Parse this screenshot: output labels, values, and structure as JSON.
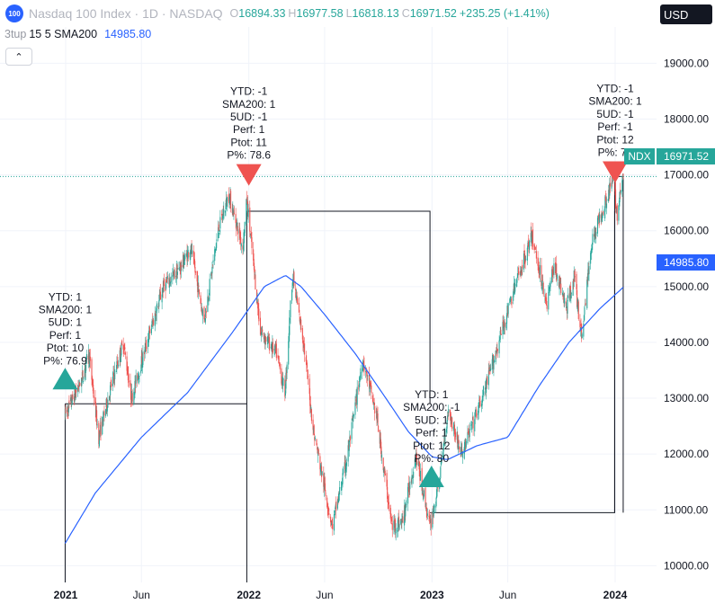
{
  "header": {
    "logo_text": "100",
    "symbol": "Nasdaq 100 Index · 1D · NASDAQ",
    "open_label": "O",
    "open": "16894.33",
    "high_label": "H",
    "high": "16977.58",
    "low_label": "L",
    "low": "16818.13",
    "close_label": "C",
    "close": "16971.52",
    "change": "+235.25 (+1.41%)"
  },
  "indicator": {
    "name": "3tup",
    "params": "15 5 SMA200",
    "value": "14985.80"
  },
  "currency": "USD",
  "price_tags": {
    "ticker": "NDX",
    "last": "16971.52",
    "sma": "14985.80"
  },
  "colors": {
    "up": "#26a69a",
    "down": "#ef5350",
    "sma": "#2962ff",
    "buy_marker": "#26a69a",
    "sell_marker": "#ef5350",
    "box": "#131722"
  },
  "chart_data": {
    "type": "candlestick",
    "ylim": [
      9700,
      19650
    ],
    "y_ticks": [
      10000,
      11000,
      12000,
      13000,
      14000,
      15000,
      16000,
      17000,
      18000,
      19000
    ],
    "y_tick_labels": [
      "10000.00",
      "11000.00",
      "12000.00",
      "13000.00",
      "14000.00",
      "15000.00",
      "16000.00",
      "17000.00",
      "18000.00",
      "19000.00"
    ],
    "x_tick_labels": [
      {
        "date": "2021-01",
        "label": "2021"
      },
      {
        "date": "2021-06",
        "label": "Jun"
      },
      {
        "date": "2022-01",
        "label": "2022"
      },
      {
        "date": "2022-06",
        "label": "Jun"
      },
      {
        "date": "2023-01",
        "label": "2023"
      },
      {
        "date": "2023-06",
        "label": "Jun"
      },
      {
        "date": "2024-01",
        "label": "2024"
      }
    ],
    "price_path": [
      [
        "2020-12-31",
        12700
      ],
      [
        "2021-02-01",
        13300
      ],
      [
        "2021-02-16",
        13800
      ],
      [
        "2021-03-08",
        12300
      ],
      [
        "2021-04-01",
        13200
      ],
      [
        "2021-04-26",
        14000
      ],
      [
        "2021-05-12",
        13000
      ],
      [
        "2021-06-15",
        14100
      ],
      [
        "2021-07-15",
        15000
      ],
      [
        "2021-08-15",
        15300
      ],
      [
        "2021-09-07",
        15700
      ],
      [
        "2021-10-04",
        14400
      ],
      [
        "2021-11-01",
        16000
      ],
      [
        "2021-11-22",
        16650
      ],
      [
        "2021-12-20",
        15700
      ],
      [
        "2021-12-28",
        16550
      ],
      [
        "2022-01-24",
        14200
      ],
      [
        "2022-02-25",
        13800
      ],
      [
        "2022-03-14",
        13100
      ],
      [
        "2022-03-29",
        15200
      ],
      [
        "2022-04-20",
        14000
      ],
      [
        "2022-05-10",
        12400
      ],
      [
        "2022-06-16",
        10700
      ],
      [
        "2022-07-15",
        11900
      ],
      [
        "2022-08-16",
        13700
      ],
      [
        "2022-09-12",
        12700
      ],
      [
        "2022-10-13",
        10700
      ],
      [
        "2022-11-03",
        10800
      ],
      [
        "2022-11-30",
        12000
      ],
      [
        "2022-12-28",
        10700
      ],
      [
        "2023-01-15",
        11500
      ],
      [
        "2023-02-02",
        12800
      ],
      [
        "2023-03-01",
        12000
      ],
      [
        "2023-04-15",
        13100
      ],
      [
        "2023-06-15",
        15000
      ],
      [
        "2023-07-19",
        15900
      ],
      [
        "2023-08-18",
        14700
      ],
      [
        "2023-09-01",
        15400
      ],
      [
        "2023-09-26",
        14600
      ],
      [
        "2023-10-11",
        15200
      ],
      [
        "2023-10-26",
        14100
      ],
      [
        "2023-11-15",
        15800
      ],
      [
        "2023-12-15",
        16600
      ],
      [
        "2023-12-28",
        16900
      ],
      [
        "2024-01-05",
        16300
      ],
      [
        "2024-01-17",
        16971
      ]
    ],
    "sma200_path": [
      [
        "2020-12-31",
        10400
      ],
      [
        "2021-03-01",
        11300
      ],
      [
        "2021-06-01",
        12300
      ],
      [
        "2021-09-01",
        13100
      ],
      [
        "2021-12-01",
        14200
      ],
      [
        "2022-02-01",
        15000
      ],
      [
        "2022-03-15",
        15200
      ],
      [
        "2022-04-15",
        15000
      ],
      [
        "2022-06-01",
        14500
      ],
      [
        "2022-08-01",
        13800
      ],
      [
        "2022-10-01",
        13000
      ],
      [
        "2022-11-15",
        12400
      ],
      [
        "2023-01-01",
        11950
      ],
      [
        "2023-02-01",
        11900
      ],
      [
        "2023-04-01",
        12150
      ],
      [
        "2023-06-01",
        12300
      ],
      [
        "2023-08-01",
        13200
      ],
      [
        "2023-10-01",
        14000
      ],
      [
        "2023-12-01",
        14600
      ],
      [
        "2024-01-17",
        14986
      ]
    ],
    "boxes": [
      {
        "x0": "2020-12-31",
        "x1": "2021-12-28",
        "y0": 12900,
        "y1": 9700
      },
      {
        "x0": "2021-12-28",
        "x1": "2022-12-28",
        "y0": 16350,
        "y1": 12900
      },
      {
        "x0": "2022-12-28",
        "x1": "2023-12-31",
        "y0": 10950,
        "y1": 16350
      },
      {
        "x0": "2023-12-31",
        "x1": "2024-01-17",
        "y0": 16971,
        "y1": 10950
      }
    ],
    "markers": [
      {
        "date": "2020-12-31",
        "price": 13350,
        "type": "buy",
        "label": [
          "YTD: 1",
          "SMA200: 1",
          "5UD: 1",
          "Perf: 1",
          "Ptot: 10",
          "P%: 76.9"
        ]
      },
      {
        "date": "2022-01-01",
        "price": 17000,
        "type": "sell",
        "label": [
          "YTD: -1",
          "SMA200: 1",
          "5UD: -1",
          "Perf: 1",
          "Ptot: 11",
          "P%: 78.6"
        ]
      },
      {
        "date": "2022-12-31",
        "price": 11600,
        "type": "buy",
        "label": [
          "YTD: 1",
          "SMA200: -1",
          "5UD: 1",
          "Perf: 1",
          "Ptot: 12",
          "P%: 80"
        ]
      },
      {
        "date": "2024-01-01",
        "price": 17050,
        "type": "sell",
        "label": [
          "YTD: -1",
          "SMA200: 1",
          "5UD: -1",
          "Perf: -1",
          "Ptot: 12",
          "P%: 75"
        ]
      }
    ],
    "last_price": 16971.52,
    "sma_last": 14985.8
  }
}
